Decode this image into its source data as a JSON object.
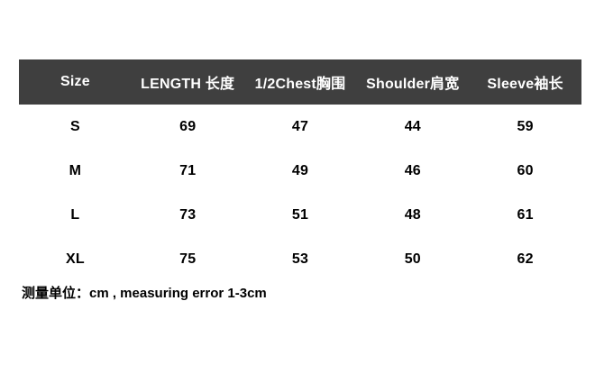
{
  "chart_data": {
    "type": "table",
    "title": "",
    "columns": [
      "Size",
      "LENGTH 长度",
      "1/2Chest胸围",
      "Shoulder肩宽",
      "Sleeve袖长"
    ],
    "rows": [
      [
        "S",
        "69",
        "47",
        "44",
        "59"
      ],
      [
        "M",
        "71",
        "49",
        "46",
        "60"
      ],
      [
        "L",
        "73",
        "51",
        "48",
        "61"
      ],
      [
        "XL",
        "75",
        "53",
        "50",
        "62"
      ]
    ],
    "note": "测量单位：cm , measuring error 1-3cm",
    "layout_hints": {
      "grid": "off",
      "header_style": "dark-bar",
      "unit": "cm"
    }
  },
  "colors": {
    "header_bg": "#3f3f3f",
    "header_text": "#ffffff",
    "body_text": "#000000",
    "page_bg": "#ffffff"
  }
}
